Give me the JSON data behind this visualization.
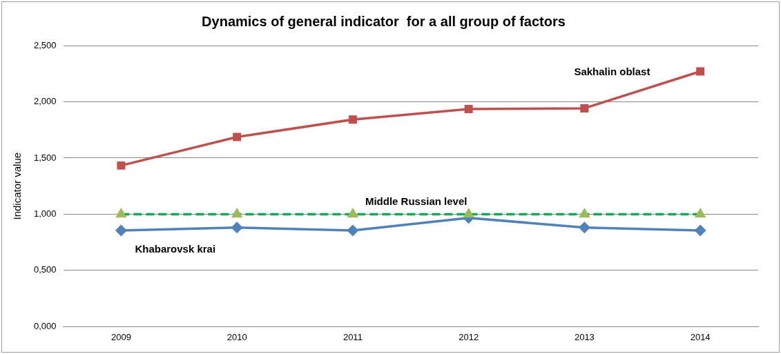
{
  "chart_data": {
    "type": "line",
    "title": "Dynamics of general indicator  for a all group of factors",
    "ylabel": "Indicator value",
    "categories": [
      "2009",
      "2010",
      "2011",
      "2012",
      "2013",
      "2014"
    ],
    "series": [
      {
        "name": "Khabarovsk krai",
        "color": "#4f81bd",
        "values": [
          0.856,
          0.881,
          0.856,
          0.968,
          0.881,
          0.856
        ],
        "marker": "diamond",
        "line_style": "solid"
      },
      {
        "name": "Sakhalin oblast",
        "color": "#c0504d",
        "values": [
          1.433,
          1.687,
          1.842,
          1.935,
          1.942,
          2.27
        ],
        "marker": "square",
        "line_style": "solid"
      },
      {
        "name": "Middle Russian level",
        "color": "#00b050",
        "colors": [
          "#9bbb59",
          "#9bbb59",
          "#9bbb59",
          "#9bbb59",
          "#9bbb59",
          "#9bbb59"
        ],
        "values": [
          1,
          1,
          1,
          1,
          1,
          1
        ],
        "marker": "triangle",
        "line_style": "dashed"
      }
    ],
    "ylim": [
      0,
      2.5
    ],
    "yticks": [
      {
        "value": 0,
        "label": "0,000"
      },
      {
        "value": 0.5,
        "label": "0,500"
      },
      {
        "value": 1,
        "label": "1,000"
      },
      {
        "value": 1.5,
        "label": "1,500"
      },
      {
        "value": 2,
        "label": "2,000"
      },
      {
        "value": 2.5,
        "label": "2,500"
      }
    ],
    "grid": "y",
    "legend": false
  }
}
